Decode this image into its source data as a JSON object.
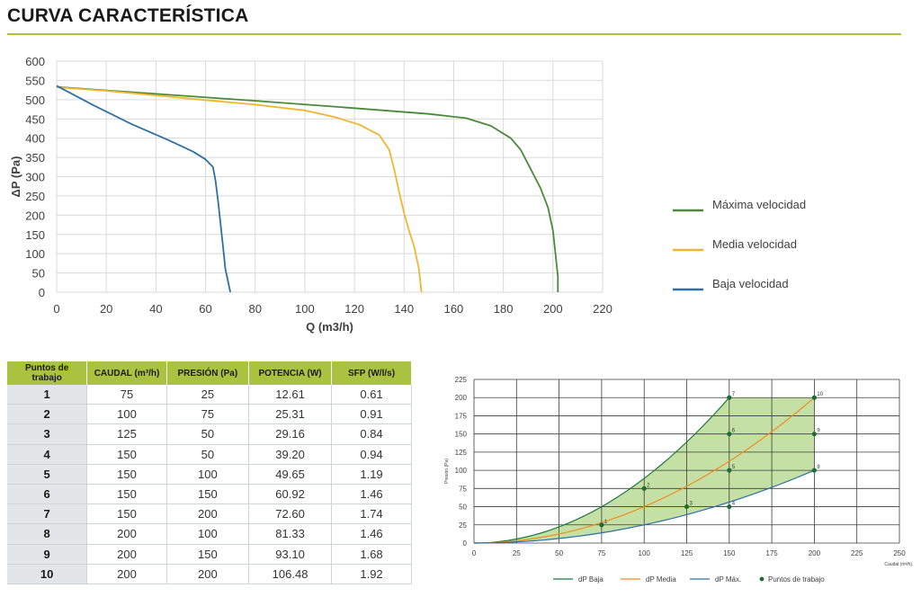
{
  "page": {
    "title": "CURVA CARACTERÍSTICA",
    "accent": "#a9c23f"
  },
  "chart_data": [
    {
      "type": "line",
      "title": "",
      "xlabel": "Q (m3/h)",
      "ylabel": "ΔP (Pa)",
      "xlim": [
        0,
        220
      ],
      "ylim": [
        0,
        600
      ],
      "xticks": [
        0,
        20,
        40,
        60,
        80,
        100,
        120,
        140,
        160,
        180,
        200,
        220
      ],
      "yticks": [
        0,
        50,
        100,
        150,
        200,
        250,
        300,
        350,
        400,
        450,
        500,
        550,
        600
      ],
      "grid": true,
      "legend_position": "right",
      "series": [
        {
          "name": "Máxima velocidad",
          "color": "#4a8a3a",
          "points": [
            [
              0,
              533
            ],
            [
              40,
              515
            ],
            [
              80,
              497
            ],
            [
              120,
              478
            ],
            [
              150,
              463
            ],
            [
              165,
              452
            ],
            [
              175,
              432
            ],
            [
              183,
              400
            ],
            [
              187,
              370
            ],
            [
              191,
              320
            ],
            [
              195,
              270
            ],
            [
              198,
              220
            ],
            [
              200,
              160
            ],
            [
              201,
              100
            ],
            [
              202,
              40
            ],
            [
              202,
              0
            ]
          ]
        },
        {
          "name": "Media velocidad",
          "color": "#f2b531",
          "points": [
            [
              0,
              532
            ],
            [
              20,
              523
            ],
            [
              40,
              511
            ],
            [
              60,
              499
            ],
            [
              80,
              487
            ],
            [
              100,
              472
            ],
            [
              112,
              455
            ],
            [
              122,
              435
            ],
            [
              130,
              408
            ],
            [
              134,
              370
            ],
            [
              136,
              320
            ],
            [
              138,
              260
            ],
            [
              140,
              205
            ],
            [
              142,
              160
            ],
            [
              144,
              120
            ],
            [
              146,
              60
            ],
            [
              147,
              0
            ]
          ]
        },
        {
          "name": "Baja velocidad",
          "color": "#2e6fa6",
          "points": [
            [
              0,
              536
            ],
            [
              15,
              485
            ],
            [
              30,
              437
            ],
            [
              45,
              395
            ],
            [
              55,
              365
            ],
            [
              60,
              345
            ],
            [
              63,
              325
            ],
            [
              64,
              290
            ],
            [
              65,
              240
            ],
            [
              66,
              180
            ],
            [
              67,
              120
            ],
            [
              68,
              60
            ],
            [
              70,
              0
            ]
          ]
        }
      ]
    },
    {
      "type": "table",
      "columns": [
        "Puntos de trabajo",
        "CAUDAL (m³/h)",
        "PRESIÓN (Pa)",
        "POTENCIA (W)",
        "SFP (W/l/s)"
      ],
      "rows": [
        [
          "1",
          "75",
          "25",
          "12.61",
          "0.61"
        ],
        [
          "2",
          "100",
          "75",
          "25.31",
          "0.91"
        ],
        [
          "3",
          "125",
          "50",
          "29.16",
          "0.84"
        ],
        [
          "4",
          "150",
          "50",
          "39.20",
          "0.94"
        ],
        [
          "5",
          "150",
          "100",
          "49.65",
          "1.19"
        ],
        [
          "6",
          "150",
          "150",
          "60.92",
          "1.46"
        ],
        [
          "7",
          "150",
          "200",
          "72.60",
          "1.74"
        ],
        [
          "8",
          "200",
          "100",
          "81.33",
          "1.46"
        ],
        [
          "9",
          "200",
          "150",
          "93.10",
          "1.68"
        ],
        [
          "10",
          "200",
          "200",
          "106.48",
          "1.92"
        ]
      ]
    },
    {
      "type": "line",
      "title": "",
      "xlabel": "Caudal (m³/h)",
      "ylabel": "Presión (Pa)",
      "xlim": [
        0,
        250
      ],
      "ylim": [
        0,
        225
      ],
      "xticks": [
        0,
        25,
        50,
        75,
        100,
        125,
        150,
        175,
        200,
        225,
        250
      ],
      "yticks": [
        0,
        25,
        50,
        75,
        100,
        125,
        150,
        175,
        200,
        225
      ],
      "grid": true,
      "legend_position": "bottom",
      "area_fill": "#c5e0a5",
      "series": [
        {
          "name": "dP Baja",
          "color": "#1f7a3e",
          "coeff": 0.00889,
          "range": [
            0,
            150
          ]
        },
        {
          "name": "dP Media",
          "color": "#f28c1e",
          "coeff": 0.005,
          "range": [
            0,
            200
          ]
        },
        {
          "name": "dP Máx.",
          "color": "#2e6fa6",
          "coeff": 0.0025,
          "range": [
            0,
            200
          ]
        }
      ],
      "points_series": {
        "name": "Puntos de trabajo",
        "color": "#1f6b35",
        "points": [
          {
            "label": "1",
            "x": 75,
            "y": 25
          },
          {
            "label": "2",
            "x": 100,
            "y": 75
          },
          {
            "label": "3",
            "x": 125,
            "y": 50
          },
          {
            "label": "4",
            "x": 150,
            "y": 50
          },
          {
            "label": "5",
            "x": 150,
            "y": 100
          },
          {
            "label": "6",
            "x": 150,
            "y": 150
          },
          {
            "label": "7",
            "x": 150,
            "y": 200
          },
          {
            "label": "8",
            "x": 200,
            "y": 100
          },
          {
            "label": "9",
            "x": 200,
            "y": 150
          },
          {
            "label": "10",
            "x": 200,
            "y": 200
          }
        ]
      }
    }
  ]
}
